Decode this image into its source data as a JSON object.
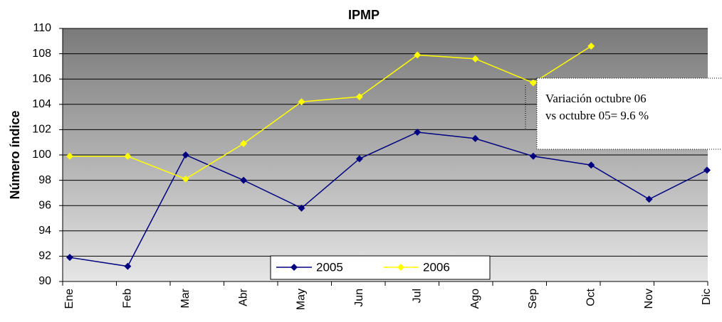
{
  "chart_data": {
    "type": "line",
    "title": "IPMP",
    "y_label": "Número índice",
    "categories": [
      "Ene",
      "Feb",
      "Mar",
      "Abr",
      "May",
      "Jun",
      "Jul",
      "Ago",
      "Sep",
      "Oct",
      "Nov",
      "Dic"
    ],
    "series": [
      {
        "name": "2005",
        "color": "#000080",
        "values": [
          91.9,
          91.2,
          100.0,
          98.0,
          95.8,
          99.7,
          101.8,
          101.3,
          99.9,
          99.2,
          96.5,
          98.8
        ]
      },
      {
        "name": "2006",
        "color": "#ffff00",
        "values": [
          99.9,
          99.9,
          98.1,
          100.9,
          104.2,
          104.6,
          107.9,
          107.6,
          105.7,
          108.6,
          null,
          null
        ]
      }
    ],
    "ylim": [
      90,
      110
    ],
    "yticks": [
      90,
      92,
      94,
      96,
      98,
      100,
      102,
      104,
      106,
      108,
      110
    ],
    "grid": true,
    "annotation": [
      "Variación  octubre 06",
      "vs octubre 05=   9.6 %"
    ]
  }
}
